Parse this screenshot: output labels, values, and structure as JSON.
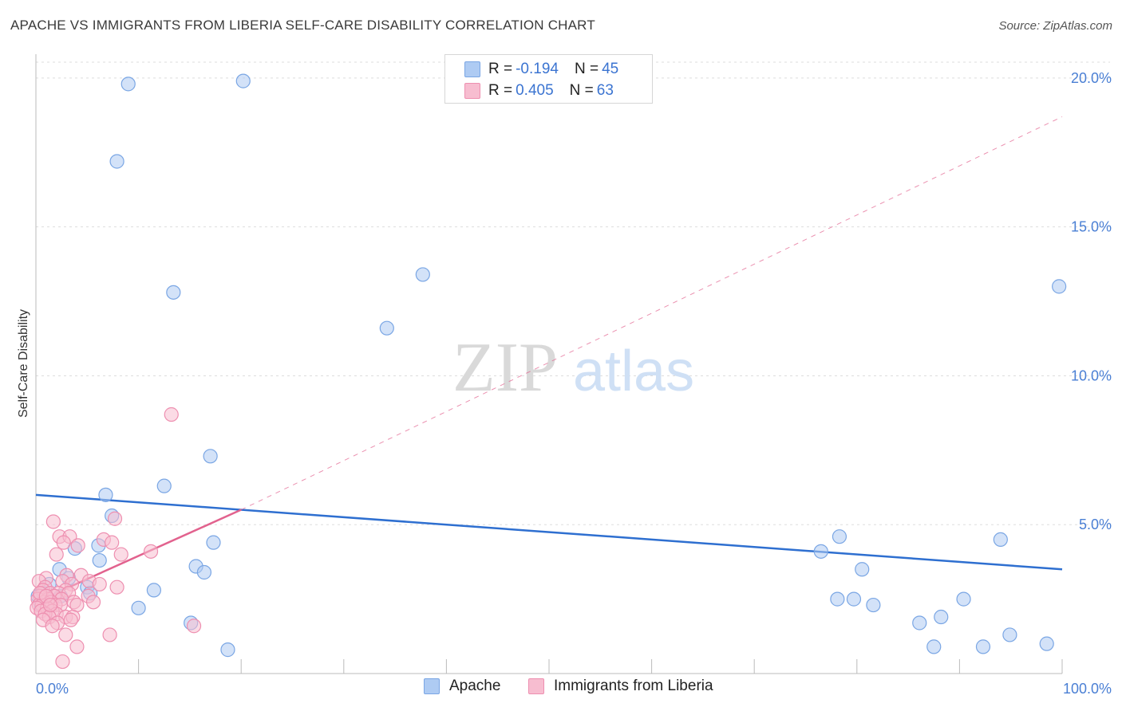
{
  "header": {
    "title": "APACHE VS IMMIGRANTS FROM LIBERIA SELF-CARE DISABILITY CORRELATION CHART",
    "source": "Source: ZipAtlas.com"
  },
  "watermark": {
    "zip": "ZIP",
    "atlas": "atlas"
  },
  "legend": {
    "series": [
      {
        "r_label": "R =",
        "r_value": "-0.194",
        "n_label": "N =",
        "n_value": "45"
      },
      {
        "r_label": "R =",
        "r_value": "0.405",
        "n_label": "N =",
        "n_value": "63"
      }
    ]
  },
  "bottom_legend": {
    "apache": "Apache",
    "liberia": "Immigrants from Liberia"
  },
  "colors": {
    "apache_fill": "#aecbf3",
    "apache_stroke": "#7aa6e4",
    "apache_line": "#2e6fd0",
    "liberia_fill": "#f7bdd0",
    "liberia_stroke": "#ee8fb0",
    "liberia_line": "#e2628e",
    "tick_text": "#4a7fd4",
    "grid": "#dddddd"
  },
  "chart_data": {
    "type": "scatter",
    "title": "APACHE VS IMMIGRANTS FROM LIBERIA SELF-CARE DISABILITY CORRELATION CHART",
    "xlabel": "",
    "ylabel": "Self-Care Disability",
    "xlim": [
      0,
      100
    ],
    "ylim": [
      0,
      20.8
    ],
    "x_tick_labels": [
      {
        "value": 0,
        "label": "0.0%"
      },
      {
        "value": 100,
        "label": "100.0%"
      }
    ],
    "x_minor_ticks": [
      10,
      20,
      30,
      40,
      50,
      60,
      70,
      80,
      90,
      100
    ],
    "y_ticks": [
      {
        "value": 5,
        "label": "5.0%"
      },
      {
        "value": 10,
        "label": "10.0%"
      },
      {
        "value": 15,
        "label": "15.0%"
      },
      {
        "value": 20,
        "label": "20.0%"
      }
    ],
    "grid": true,
    "series": [
      {
        "name": "Apache",
        "points": [
          [
            9,
            19.8
          ],
          [
            20.2,
            19.9
          ],
          [
            7.9,
            17.2
          ],
          [
            13.4,
            12.8
          ],
          [
            37.7,
            13.4
          ],
          [
            34.2,
            11.6
          ],
          [
            99.7,
            13.0
          ],
          [
            17,
            7.3
          ],
          [
            12.5,
            6.3
          ],
          [
            6.8,
            6.0
          ],
          [
            7.4,
            5.3
          ],
          [
            17.3,
            4.4
          ],
          [
            3.8,
            4.2
          ],
          [
            6.1,
            4.3
          ],
          [
            6.2,
            3.8
          ],
          [
            2.3,
            3.5
          ],
          [
            15.6,
            3.6
          ],
          [
            16.4,
            3.4
          ],
          [
            3.2,
            3.2
          ],
          [
            1.3,
            3.0
          ],
          [
            5.0,
            2.9
          ],
          [
            11.5,
            2.8
          ],
          [
            5.3,
            2.7
          ],
          [
            0.7,
            2.7
          ],
          [
            2.4,
            2.6
          ],
          [
            1.1,
            2.4
          ],
          [
            0.5,
            2.3
          ],
          [
            10,
            2.2
          ],
          [
            15.1,
            1.7
          ],
          [
            18.7,
            0.8
          ],
          [
            78.3,
            4.6
          ],
          [
            76.5,
            4.1
          ],
          [
            80.5,
            3.5
          ],
          [
            94,
            4.5
          ],
          [
            78.1,
            2.5
          ],
          [
            79.7,
            2.5
          ],
          [
            81.6,
            2.3
          ],
          [
            90.4,
            2.5
          ],
          [
            88.2,
            1.9
          ],
          [
            86.1,
            1.7
          ],
          [
            87.5,
            0.9
          ],
          [
            92.3,
            0.9
          ],
          [
            94.9,
            1.3
          ],
          [
            98.5,
            1.0
          ],
          [
            0.2,
            2.6
          ]
        ]
      },
      {
        "name": "Immigrants from Liberia",
        "points": [
          [
            13.2,
            8.7
          ],
          [
            1.7,
            5.1
          ],
          [
            7.7,
            5.2
          ],
          [
            2.3,
            4.6
          ],
          [
            3.3,
            4.6
          ],
          [
            6.6,
            4.5
          ],
          [
            2.7,
            4.4
          ],
          [
            7.4,
            4.4
          ],
          [
            4.1,
            4.3
          ],
          [
            11.2,
            4.1
          ],
          [
            2.0,
            4.0
          ],
          [
            8.3,
            4.0
          ],
          [
            3.0,
            3.3
          ],
          [
            4.4,
            3.3
          ],
          [
            1.0,
            3.2
          ],
          [
            2.6,
            3.1
          ],
          [
            5.2,
            3.1
          ],
          [
            0.3,
            3.1
          ],
          [
            6.2,
            3.0
          ],
          [
            3.5,
            3.0
          ],
          [
            0.9,
            2.9
          ],
          [
            7.9,
            2.9
          ],
          [
            2.9,
            2.8
          ],
          [
            0.7,
            2.8
          ],
          [
            1.4,
            2.7
          ],
          [
            2.2,
            2.7
          ],
          [
            3.2,
            2.7
          ],
          [
            0.4,
            2.6
          ],
          [
            5.1,
            2.6
          ],
          [
            1.8,
            2.6
          ],
          [
            0.2,
            2.5
          ],
          [
            1.2,
            2.5
          ],
          [
            2.5,
            2.5
          ],
          [
            0.8,
            2.4
          ],
          [
            3.7,
            2.4
          ],
          [
            5.6,
            2.4
          ],
          [
            1.5,
            2.4
          ],
          [
            0.3,
            2.3
          ],
          [
            1.9,
            2.3
          ],
          [
            0.6,
            2.3
          ],
          [
            2.4,
            2.3
          ],
          [
            4.0,
            2.3
          ],
          [
            0.1,
            2.2
          ],
          [
            1.1,
            2.2
          ],
          [
            0.5,
            2.1
          ],
          [
            1.6,
            2.1
          ],
          [
            2.0,
            2.0
          ],
          [
            0.9,
            2.0
          ],
          [
            1.3,
            1.9
          ],
          [
            2.9,
            1.9
          ],
          [
            3.6,
            1.9
          ],
          [
            0.7,
            1.8
          ],
          [
            2.1,
            1.7
          ],
          [
            3.4,
            1.8
          ],
          [
            1.6,
            1.6
          ],
          [
            15.4,
            1.6
          ],
          [
            2.9,
            1.3
          ],
          [
            7.2,
            1.3
          ],
          [
            4.0,
            0.9
          ],
          [
            2.6,
            0.4
          ],
          [
            0.4,
            2.7
          ],
          [
            1.0,
            2.6
          ],
          [
            1.4,
            2.3
          ]
        ]
      }
    ],
    "trendlines": [
      {
        "series": "Apache",
        "from": [
          0,
          6.0
        ],
        "to": [
          100,
          3.5
        ],
        "style": "solid"
      },
      {
        "series": "Immigrants from Liberia",
        "from": [
          0,
          2.4
        ],
        "to": [
          20,
          5.5
        ],
        "style": "solid"
      },
      {
        "series": "Immigrants from Liberia",
        "from": [
          20,
          5.5
        ],
        "to": [
          100,
          18.7
        ],
        "style": "dashed"
      }
    ]
  }
}
